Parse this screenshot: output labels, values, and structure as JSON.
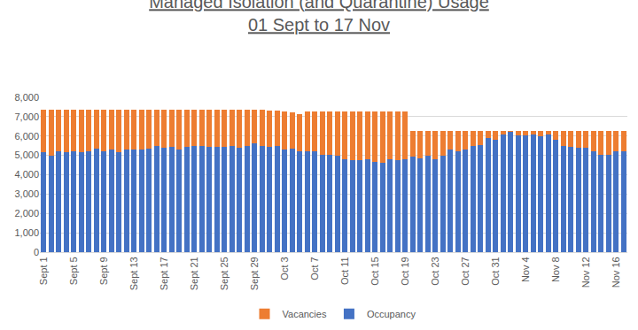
{
  "chart_data": {
    "type": "bar",
    "title": "Managed Isolation (and Quarantine) Usage",
    "subtitle": "01 Sept to 17 Nov",
    "stacked": true,
    "grid": true,
    "legend": "bottom",
    "categories": [
      "Sept 1",
      null,
      null,
      null,
      "Sept 5",
      null,
      null,
      null,
      "Sept 9",
      null,
      null,
      null,
      "Sept 13",
      null,
      null,
      null,
      "Sept 17",
      null,
      null,
      null,
      "Sept 21",
      null,
      null,
      null,
      "Sept 25",
      null,
      null,
      null,
      "Sept 29",
      null,
      null,
      null,
      "Oct 3",
      null,
      null,
      null,
      "Oct 7",
      null,
      null,
      null,
      "Oct 11",
      null,
      null,
      null,
      "Oct 15",
      null,
      null,
      null,
      "Oct 19",
      null,
      null,
      null,
      "Oct 23",
      null,
      null,
      null,
      "Oct 27",
      null,
      null,
      null,
      "Oct 31",
      null,
      null,
      null,
      "Nov 4",
      null,
      null,
      null,
      "Nov 8",
      null,
      null,
      null,
      "Nov 12",
      null,
      null,
      null,
      "Nov 16",
      null
    ],
    "series": [
      {
        "name": "Occupancy",
        "color": "#4472c4",
        "values": [
          5150,
          5000,
          5200,
          5150,
          5200,
          5150,
          5200,
          5350,
          5200,
          5300,
          5150,
          5300,
          5300,
          5300,
          5350,
          5500,
          5400,
          5450,
          5300,
          5450,
          5500,
          5500,
          5450,
          5450,
          5450,
          5500,
          5400,
          5500,
          5600,
          5500,
          5450,
          5500,
          5300,
          5350,
          5200,
          5200,
          5200,
          5050,
          5050,
          5000,
          4800,
          4750,
          4750,
          4800,
          4650,
          4600,
          4800,
          4750,
          4800,
          4950,
          4850,
          5000,
          4800,
          5000,
          5300,
          5200,
          5300,
          5500,
          5550,
          5900,
          5800,
          6100,
          6200,
          6050,
          6050,
          6100,
          6000,
          6100,
          5800,
          5500,
          5450,
          5400,
          5400,
          5200,
          5050,
          5050,
          5200,
          5200
        ]
      },
      {
        "name": "Vacancies",
        "color": "#ed7d31",
        "values": [
          2200,
          2350,
          2150,
          2200,
          2150,
          2200,
          2150,
          2000,
          2150,
          2050,
          2200,
          2050,
          2050,
          2050,
          2000,
          1850,
          1950,
          1900,
          2050,
          1900,
          1850,
          1850,
          1900,
          1900,
          1900,
          1850,
          1950,
          1850,
          1750,
          1850,
          1850,
          1800,
          1950,
          1850,
          1950,
          2050,
          2050,
          2200,
          2200,
          2250,
          2450,
          2500,
          2500,
          2450,
          2600,
          2650,
          2450,
          2500,
          2450,
          1300,
          1400,
          1250,
          1450,
          1250,
          950,
          1050,
          950,
          750,
          700,
          350,
          450,
          150,
          50,
          200,
          200,
          150,
          250,
          150,
          450,
          750,
          800,
          850,
          850,
          1050,
          1200,
          1200,
          1050,
          1050
        ]
      }
    ],
    "ylim": [
      0,
      8000
    ],
    "yticks": [
      0,
      {
        "value": 1000,
        "label": "1,000"
      },
      {
        "value": 2000,
        "label": "2,000"
      },
      {
        "value": 3000,
        "label": "3,000"
      },
      {
        "value": 4000,
        "label": "4,000"
      },
      {
        "value": 5000,
        "label": "5,000"
      },
      {
        "value": 6000,
        "label": "6,000"
      },
      {
        "value": 7000,
        "label": "7,000"
      },
      {
        "value": 8000,
        "label": "8,000"
      }
    ]
  }
}
